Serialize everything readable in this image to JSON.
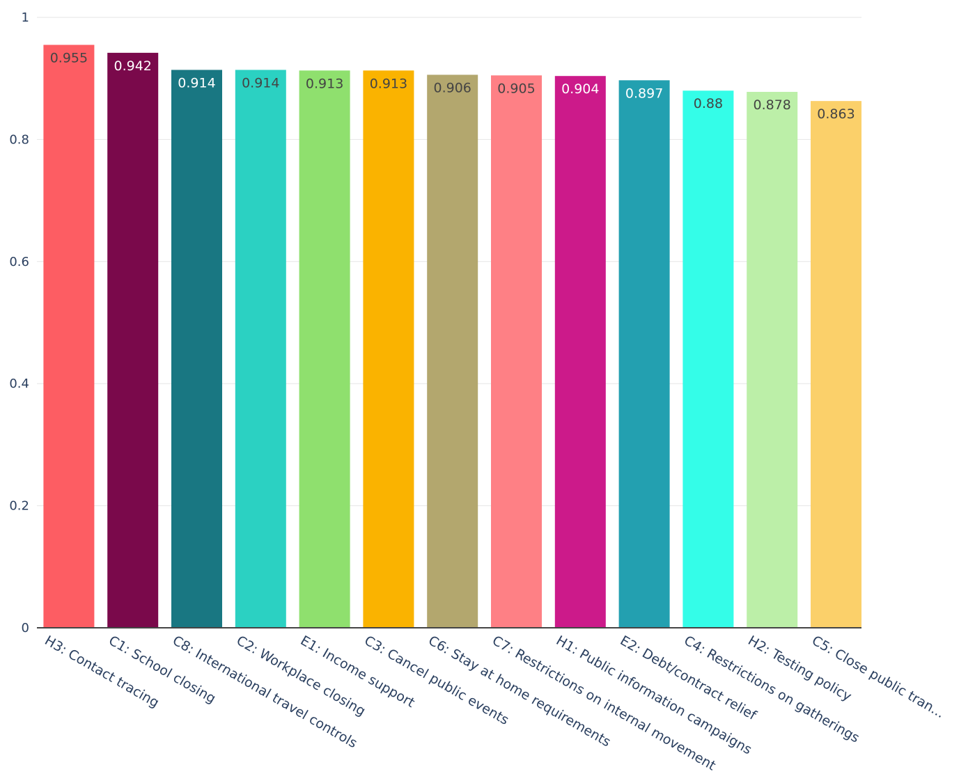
{
  "chart_data": {
    "type": "bar",
    "title": "",
    "xlabel": "",
    "ylabel": "",
    "ylim": [
      0,
      1
    ],
    "yticks": [
      0,
      0.2,
      0.4,
      0.6,
      0.8,
      1
    ],
    "ytick_labels": [
      "0",
      "0.2",
      "0.4",
      "0.6",
      "0.8",
      "1"
    ],
    "grid": true,
    "legend": "none",
    "categories": [
      "H3: Contact tracing",
      "C1: School closing",
      "C8: International travel controls",
      "C2: Workplace closing",
      "E1: Income support",
      "C3: Cancel public events",
      "C6: Stay at home requirements",
      "C7: Restrictions on internal movement",
      "H1: Public information campaigns",
      "E2: Debt/contract relief",
      "C4: Restrictions on gatherings",
      "H2: Testing policy",
      "C5: Close public tran..."
    ],
    "values": [
      0.955,
      0.942,
      0.914,
      0.914,
      0.913,
      0.913,
      0.906,
      0.905,
      0.904,
      0.897,
      0.88,
      0.878,
      0.863
    ],
    "data_labels": [
      "0.955",
      "0.942",
      "0.914",
      "0.914",
      "0.913",
      "0.913",
      "0.906",
      "0.905",
      "0.904",
      "0.897",
      "0.88",
      "0.878",
      "0.863"
    ],
    "colors": [
      "#fd5d63",
      "#7a094b",
      "#197782",
      "#2bd1c2",
      "#8fe06e",
      "#fab300",
      "#b3a76e",
      "#fe8085",
      "#cc1a8a",
      "#23a0b0",
      "#34fde8",
      "#bcefa8",
      "#fbd06a"
    ],
    "label_colors": [
      "#444444",
      "#ffffff",
      "#ffffff",
      "#444444",
      "#444444",
      "#444444",
      "#444444",
      "#444444",
      "#ffffff",
      "#ffffff",
      "#444444",
      "#444444",
      "#444444"
    ]
  }
}
